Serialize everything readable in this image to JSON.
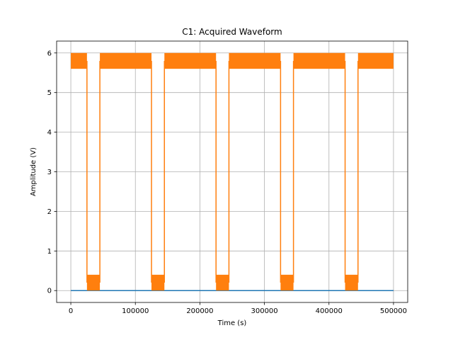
{
  "chart_data": {
    "type": "line",
    "title": "C1: Acquired Waveform",
    "xlabel": "Time (s)",
    "ylabel": "Amplitude (V)",
    "xlim": [
      -22000,
      522000
    ],
    "ylim": [
      -0.3,
      6.3
    ],
    "xticks": [
      0,
      100000,
      200000,
      300000,
      400000,
      500000
    ],
    "yticks": [
      0,
      1,
      2,
      3,
      4,
      5,
      6
    ],
    "grid": true,
    "series": [
      {
        "color": "#1f77b4",
        "style": "flat",
        "x": [
          0,
          500000
        ],
        "y": [
          0,
          0
        ]
      },
      {
        "color": "#ff7f0e",
        "style": "pulse",
        "high_band": [
          5.6,
          6.0
        ],
        "low_band": [
          0.0,
          0.4
        ],
        "segments": [
          {
            "level": "high",
            "x0": 0,
            "x1": 25000
          },
          {
            "level": "low",
            "x0": 25000,
            "x1": 45000
          },
          {
            "level": "high",
            "x0": 45000,
            "x1": 125000
          },
          {
            "level": "low",
            "x0": 125000,
            "x1": 145000
          },
          {
            "level": "high",
            "x0": 145000,
            "x1": 225000
          },
          {
            "level": "low",
            "x0": 225000,
            "x1": 245000
          },
          {
            "level": "high",
            "x0": 245000,
            "x1": 325000
          },
          {
            "level": "low",
            "x0": 325000,
            "x1": 345000
          },
          {
            "level": "high",
            "x0": 345000,
            "x1": 425000
          },
          {
            "level": "low",
            "x0": 425000,
            "x1": 445000
          },
          {
            "level": "high",
            "x0": 445000,
            "x1": 500000
          }
        ]
      }
    ]
  }
}
